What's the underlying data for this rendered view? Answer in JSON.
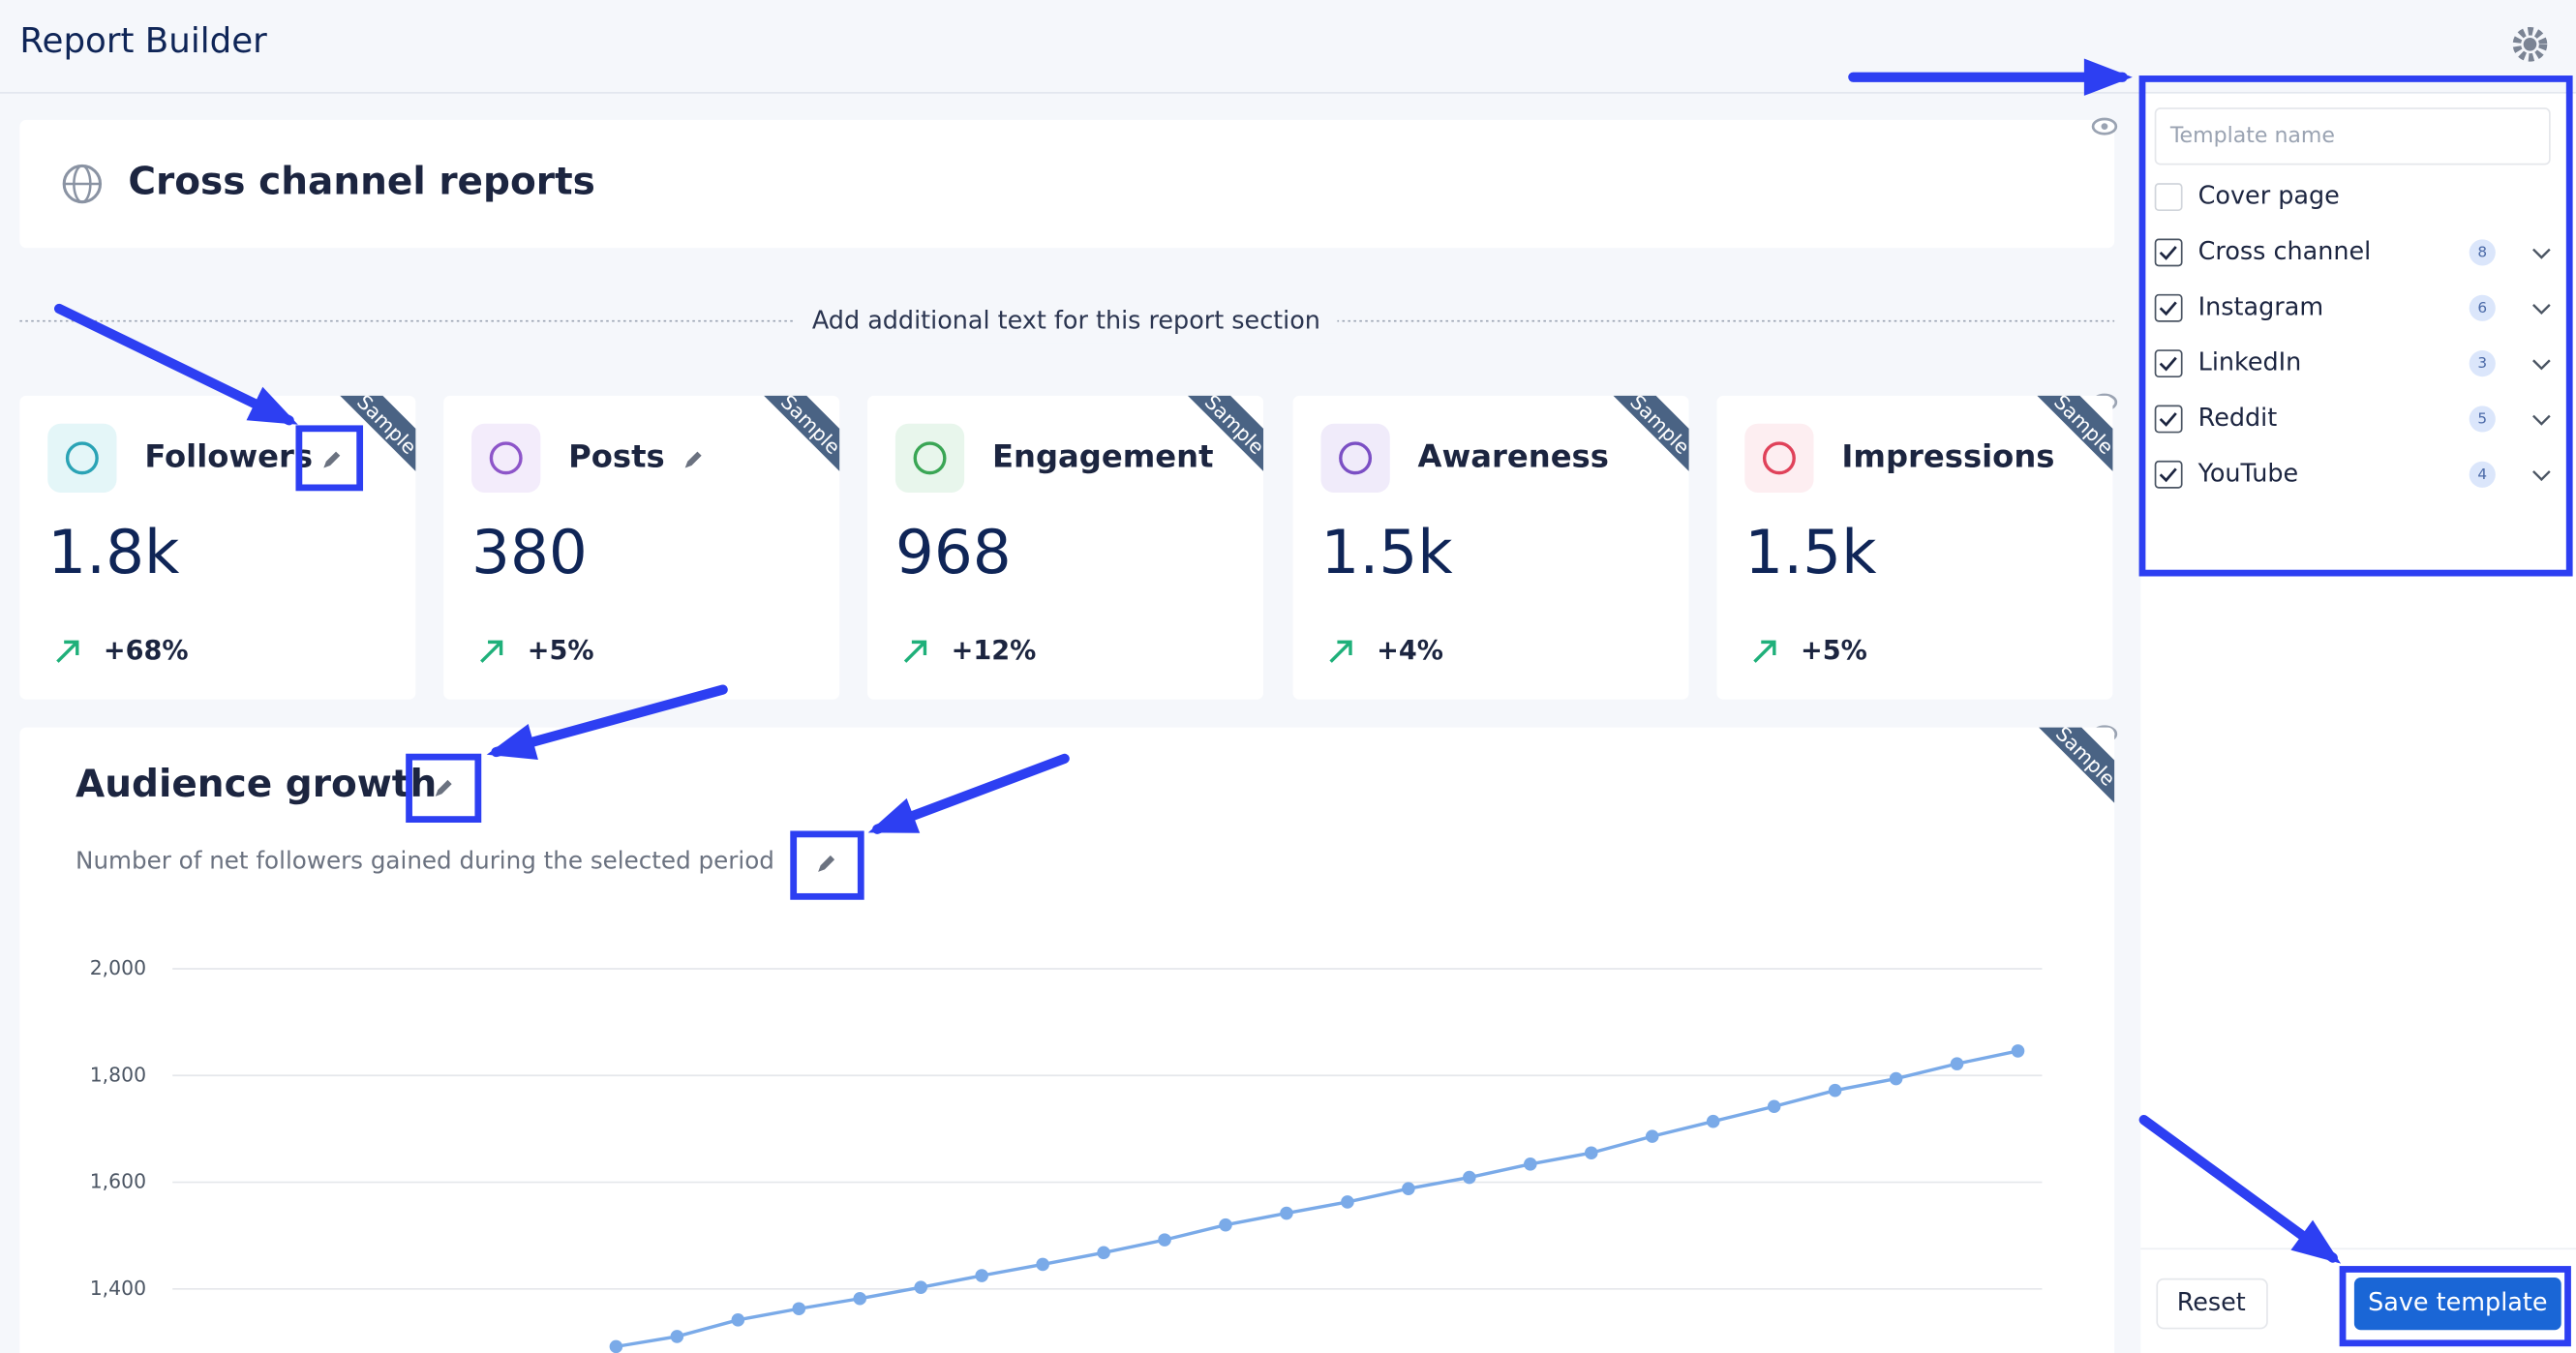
{
  "header": {
    "title": "Report Builder"
  },
  "report": {
    "title": "Cross channel reports",
    "section_text": "Add additional text for this report section"
  },
  "sample_label": "Sample",
  "metrics": [
    {
      "name": "Followers",
      "value": "1.8k",
      "change": "+68%"
    },
    {
      "name": "Posts",
      "value": "380",
      "change": "+5%"
    },
    {
      "name": "Engagement",
      "value": "968",
      "change": "+12%"
    },
    {
      "name": "Awareness",
      "value": "1.5k",
      "change": "+4%"
    },
    {
      "name": "Impressions",
      "value": "1.5k",
      "change": "+5%"
    }
  ],
  "chart_data": {
    "type": "line",
    "title": "Audience growth",
    "subtitle": "Number of net followers gained during the selected period",
    "color": "#7aaae8",
    "values": [
      1292,
      1311,
      1342,
      1363,
      1382,
      1403,
      1425,
      1446,
      1468,
      1492,
      1520,
      1542,
      1563,
      1588,
      1609,
      1634,
      1655,
      1686,
      1714,
      1742,
      1772,
      1794,
      1822,
      1846
    ],
    "ylim": [
      1280,
      2000
    ],
    "yticks": [
      {
        "value": 2000,
        "label": "2,000"
      },
      {
        "value": 1800,
        "label": "1,800"
      },
      {
        "value": 1600,
        "label": "1,600"
      },
      {
        "value": 1400,
        "label": "1,400"
      }
    ],
    "grid": true
  },
  "panel": {
    "template_placeholder": "Template name",
    "sections": [
      {
        "name": "Cover page",
        "checked": false
      },
      {
        "name": "Cross channel",
        "checked": true,
        "count": 8
      },
      {
        "name": "Instagram",
        "checked": true,
        "count": 6
      },
      {
        "name": "LinkedIn",
        "checked": true,
        "count": 3
      },
      {
        "name": "Reddit",
        "checked": true,
        "count": 5
      },
      {
        "name": "YouTube",
        "checked": true,
        "count": 4
      }
    ],
    "reset": "Reset",
    "save": "Save template"
  }
}
